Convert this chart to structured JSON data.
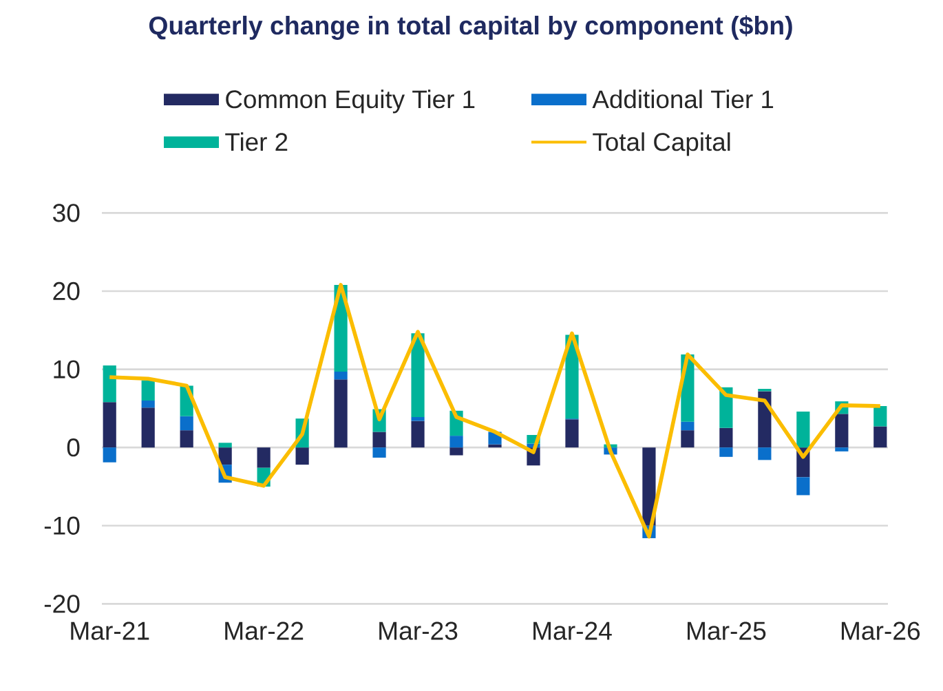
{
  "chart_data": {
    "type": "bar",
    "stacked": true,
    "title": "Quarterly change in total capital by component ($bn)",
    "categories": [
      "Mar-21",
      null,
      null,
      null,
      "Mar-22",
      null,
      null,
      null,
      "Mar-23",
      null,
      null,
      null,
      "Mar-24",
      null,
      null,
      null,
      "Mar-25",
      null,
      null,
      null,
      "Mar-26"
    ],
    "series": [
      {
        "name": "Common Equity Tier 1",
        "color": "#232a62",
        "values": [
          5.8,
          5.1,
          2.2,
          -2.2,
          -2.6,
          -2.2,
          8.7,
          2.0,
          3.4,
          -1.0,
          0.4,
          -2.3,
          3.6,
          0,
          -10.0,
          2.2,
          2.5,
          7.2,
          -3.8,
          4.3,
          2.7
        ]
      },
      {
        "name": "Additional Tier 1",
        "color": "#0a6fcb",
        "values": [
          -1.9,
          0.9,
          1.8,
          -2.3,
          0,
          0,
          1.0,
          -1.3,
          0.5,
          1.5,
          1.6,
          0.5,
          0.1,
          -0.9,
          -1.6,
          1.1,
          -1.2,
          -1.6,
          -2.3,
          -0.5,
          0
        ]
      },
      {
        "name": "Tier 2",
        "color": "#00b39a",
        "values": [
          4.7,
          2.6,
          3.9,
          0.6,
          -2.4,
          3.7,
          11.1,
          2.9,
          10.7,
          3.2,
          0,
          1.1,
          10.7,
          0.4,
          0,
          8.6,
          5.2,
          0.3,
          4.6,
          1.6,
          2.6
        ]
      },
      {
        "name": "Total Capital",
        "type": "line",
        "color": "#fbbd00",
        "values": [
          9.0,
          8.8,
          7.9,
          -3.8,
          -4.9,
          1.7,
          20.8,
          3.6,
          14.8,
          3.9,
          2.0,
          -0.6,
          14.6,
          -0.5,
          -11.4,
          11.9,
          6.7,
          6.0,
          -1.2,
          5.4,
          5.3
        ]
      }
    ],
    "ylim": [
      -20,
      30
    ],
    "yticks": [
      -20,
      -10,
      0,
      10,
      20,
      30
    ],
    "grid": "y",
    "legend": "top",
    "marker": "none"
  }
}
